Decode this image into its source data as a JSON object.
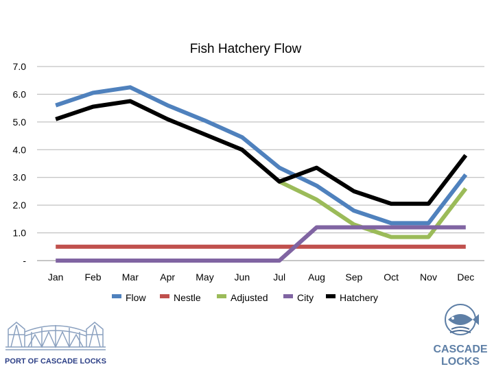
{
  "chart_data": {
    "type": "line",
    "title": "Fish Hatchery Flow",
    "categories": [
      "Jan",
      "Feb",
      "Mar",
      "Apr",
      "May",
      "Jun",
      "Jul",
      "Aug",
      "Sep",
      "Oct",
      "Nov",
      "Dec"
    ],
    "y_tick_labels": [
      "-",
      "1.0",
      "2.0",
      "3.0",
      "4.0",
      "5.0",
      "6.0",
      "7.0"
    ],
    "ylim": [
      0,
      7
    ],
    "grid": true,
    "legend_position": "bottom",
    "series": [
      {
        "name": "Flow",
        "color": "#4F81BD",
        "values": [
          5.6,
          6.05,
          6.25,
          5.6,
          5.05,
          4.45,
          3.35,
          2.7,
          1.8,
          1.35,
          1.35,
          3.1
        ]
      },
      {
        "name": "Nestle",
        "color": "#C0504D",
        "values": [
          0.5,
          0.5,
          0.5,
          0.5,
          0.5,
          0.5,
          0.5,
          0.5,
          0.5,
          0.5,
          0.5,
          0.5
        ]
      },
      {
        "name": "Adjusted",
        "color": "#9BBB59",
        "values": [
          null,
          null,
          null,
          null,
          null,
          null,
          2.85,
          2.2,
          1.3,
          0.85,
          0.85,
          2.6
        ]
      },
      {
        "name": "City",
        "color": "#8064A2",
        "values": [
          0,
          0,
          0,
          0,
          0,
          0,
          0,
          1.2,
          1.2,
          1.2,
          1.2,
          1.2
        ]
      },
      {
        "name": "Hatchery",
        "color": "#000000",
        "values": [
          5.1,
          5.55,
          5.75,
          5.1,
          4.55,
          4.0,
          2.85,
          3.35,
          2.5,
          2.05,
          2.05,
          3.8
        ]
      }
    ]
  },
  "logos": {
    "port_caption": "PORT OF CASCADE LOCKS",
    "cl_line1": "CASCADE",
    "cl_line2": "LOCKS"
  }
}
